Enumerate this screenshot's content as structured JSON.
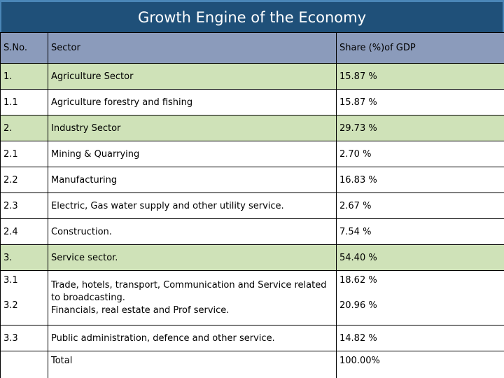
{
  "title": "Growth Engine of the Economy",
  "table": {
    "headers": [
      "S.No.",
      "Sector",
      "Share (%)of GDP"
    ],
    "rows": [
      {
        "sno": "1.",
        "sector": "Agriculture Sector",
        "share": "15.87 %"
      },
      {
        "sno": "1.1",
        "sector": "Agriculture forestry and fishing",
        "share": "15.87 %"
      },
      {
        "sno": "2.",
        "sector": "Industry Sector",
        "share": "29.73 %"
      },
      {
        "sno": "2.1",
        "sector": "Mining & Quarrying",
        "share": "2.70 %"
      },
      {
        "sno": "2.2",
        "sector": "Manufacturing",
        "share": "16.83 %"
      },
      {
        "sno": "2.3",
        "sector": "Electric, Gas water supply and other utility service.",
        "share": "2.67 %"
      },
      {
        "sno": "2.4",
        "sector": "Construction.",
        "share": "7.54 %"
      },
      {
        "sno": "3.",
        "sector": "Service sector.",
        "share": "54.40 %"
      }
    ],
    "combined_row": {
      "sno_a": "3.1",
      "sno_b": "3.2",
      "sector_a": "Trade, hotels, transport, Communication and Service related to broadcasting.",
      "sector_b": "Financials, real estate and Prof service.",
      "share_a": "18.62 %",
      "share_b": "20.96 %"
    },
    "row_33": {
      "sno": "3.3",
      "sector": "Public administration, defence and other service.",
      "share": "14.82 %"
    },
    "total": {
      "sno": "",
      "label": "Total",
      "share": "100.00%"
    }
  }
}
